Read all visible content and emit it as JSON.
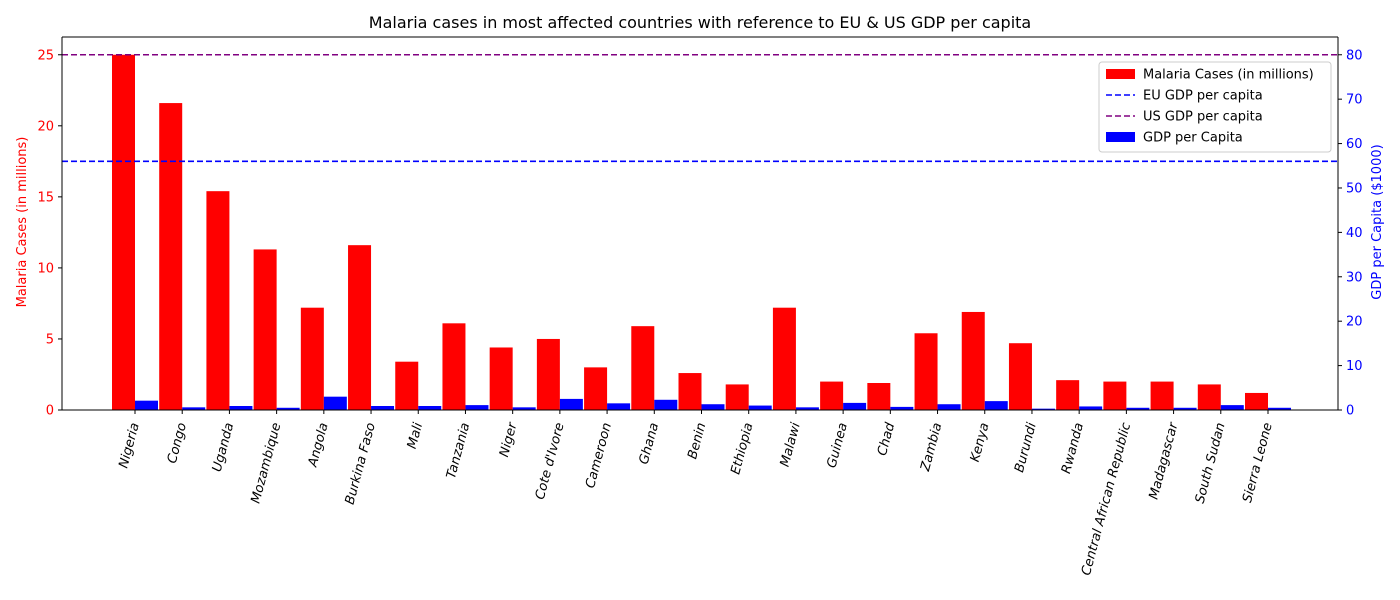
{
  "chart_data": {
    "type": "bar",
    "title": "Malaria cases in most affected countries with reference to EU & US GDP per capita",
    "categories": [
      "Nigeria",
      "Congo",
      "Uganda",
      "Mozambique",
      "Angola",
      "Burkina Faso",
      "Mali",
      "Tanzania",
      "Niger",
      "Cote d'Ivore",
      "Cameroon",
      "Ghana",
      "Benin",
      "Ethiopia",
      "Malawi",
      "Guinea",
      "Chad",
      "Zambia",
      "Kenya",
      "Burundi",
      "Rwanda",
      "Central African Republic",
      "Madagascar",
      "South Sudan",
      "Sierra Leone"
    ],
    "series": [
      {
        "name": "Malaria Cases (in millions)",
        "axis": "left",
        "color": "#ff0000",
        "values": [
          25.0,
          21.6,
          15.4,
          11.3,
          7.2,
          11.6,
          3.4,
          6.1,
          4.4,
          5.0,
          3.0,
          5.9,
          2.6,
          1.8,
          7.2,
          2.0,
          1.9,
          5.4,
          6.9,
          4.7,
          2.1,
          2.0,
          2.0,
          1.8,
          1.2
        ]
      },
      {
        "name": "GDP per Capita",
        "axis": "right",
        "color": "#0000ff",
        "values": [
          2.1,
          0.6,
          0.9,
          0.5,
          3.0,
          0.9,
          0.9,
          1.1,
          0.6,
          2.5,
          1.5,
          2.3,
          1.3,
          1.0,
          0.6,
          1.6,
          0.7,
          1.3,
          2.0,
          0.3,
          0.8,
          0.5,
          0.5,
          1.1,
          0.5
        ]
      }
    ],
    "reference_lines": [
      {
        "name": "EU GDP per capita",
        "value": 56,
        "axis": "right",
        "color": "#0000ff",
        "style": "dashed"
      },
      {
        "name": "US GDP per capita",
        "value": 80,
        "axis": "right",
        "color": "#800080",
        "style": "dashed"
      }
    ],
    "ylabel_left": "Malaria Cases (in millions)",
    "ylabel_right": "GDP per Capita ($1000)",
    "ylim_left": [
      0,
      26.25
    ],
    "ylim_right": [
      0,
      84
    ],
    "yticks_left": [
      0,
      5,
      10,
      15,
      20,
      25
    ],
    "yticks_right": [
      0,
      10,
      20,
      30,
      40,
      50,
      60,
      70,
      80
    ],
    "left_axis_color": "#ff0000",
    "right_axis_color": "#0000ff",
    "legend_position": "top-right",
    "grid": false,
    "xtick_rotation_deg": 75
  }
}
